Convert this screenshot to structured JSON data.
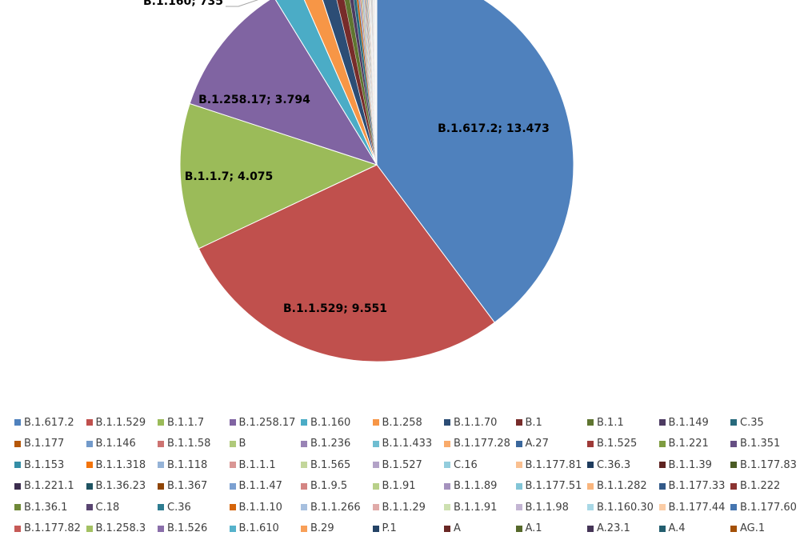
{
  "chart_data": {
    "type": "pie",
    "title": "",
    "slices": [
      {
        "name": "B.1.617.2",
        "value": 13473,
        "label": "B.1.617.2; 13.473",
        "color": "#4f81bd"
      },
      {
        "name": "B.1.1.529",
        "value": 9551,
        "label": "B.1.1.529; 9.551",
        "color": "#c0504d"
      },
      {
        "name": "B.1.1.7",
        "value": 4075,
        "label": "B.1.1.7; 4.075",
        "color": "#9bbb59"
      },
      {
        "name": "B.1.258.17",
        "value": 3794,
        "label": "B.1.258.17; 3.794",
        "color": "#8064a2"
      },
      {
        "name": "B.1.160",
        "value": 735,
        "label": "B.1.160; 735",
        "color": "#4bacc6"
      },
      {
        "name": "B.1.258",
        "value": 520,
        "label": "",
        "color": "#f79646"
      },
      {
        "name": "B.1.1.70",
        "value": 430,
        "label": "",
        "color": "#2c4d75"
      },
      {
        "name": "B.1",
        "value": 240,
        "label": "",
        "color": "#772c2a"
      },
      {
        "name": "B.1.1",
        "value": 170,
        "label": "",
        "color": "#5f7530"
      },
      {
        "name": "B.1.149",
        "value": 120,
        "label": "",
        "color": "#4d3b62"
      },
      {
        "name": "C.35",
        "value": 100,
        "label": "",
        "color": "#276a7c"
      },
      {
        "name": "B.1.177",
        "value": 60,
        "label": "",
        "color": "#b65708"
      },
      {
        "name": "B.1.146",
        "value": 45,
        "label": "",
        "color": "#729aca"
      },
      {
        "name": "B.1.1.58",
        "value": 40,
        "label": "",
        "color": "#cd7371"
      },
      {
        "name": "B",
        "value": 35,
        "label": "",
        "color": "#afc97a"
      },
      {
        "name": "B.1.236",
        "value": 30,
        "label": "",
        "color": "#9983b5"
      },
      {
        "name": "B.1.1.433",
        "value": 28,
        "label": "",
        "color": "#6fbdd1"
      },
      {
        "name": "B.1.177.28",
        "value": 26,
        "label": "",
        "color": "#f9ab6b"
      },
      {
        "name": "A.27",
        "value": 24,
        "label": "",
        "color": "#3a679c"
      },
      {
        "name": "B.1.525",
        "value": 22,
        "label": "",
        "color": "#9e3a38"
      },
      {
        "name": "B.1.221",
        "value": 20,
        "label": "",
        "color": "#7e9c40"
      },
      {
        "name": "B.1.351",
        "value": 19,
        "label": "",
        "color": "#664f83"
      },
      {
        "name": "B.1.153",
        "value": 18,
        "label": "",
        "color": "#358ea6"
      },
      {
        "name": "B.1.1.318",
        "value": 17,
        "label": "",
        "color": "#f3740b"
      },
      {
        "name": "B.1.118",
        "value": 16,
        "label": "",
        "color": "#95b3d7"
      },
      {
        "name": "B.1.1.1",
        "value": 15,
        "label": "",
        "color": "#d99694"
      },
      {
        "name": "B.1.565",
        "value": 14,
        "label": "",
        "color": "#c3d69b"
      },
      {
        "name": "B.1.527",
        "value": 13,
        "label": "",
        "color": "#b3a2c7"
      },
      {
        "name": "C.16",
        "value": 12,
        "label": "",
        "color": "#93cddd"
      },
      {
        "name": "B.1.177.81",
        "value": 12,
        "label": "",
        "color": "#fac090"
      },
      {
        "name": "C.36.3",
        "value": 11,
        "label": "",
        "color": "#1f3c5e"
      },
      {
        "name": "B.1.1.39",
        "value": 11,
        "label": "",
        "color": "#5e2321"
      },
      {
        "name": "B.1.177.83",
        "value": 10,
        "label": "",
        "color": "#4b5c25"
      },
      {
        "name": "B.1.221.1",
        "value": 10,
        "label": "",
        "color": "#3c2e4e"
      },
      {
        "name": "B.1.36.23",
        "value": 9,
        "label": "",
        "color": "#1f5462"
      },
      {
        "name": "B.1.367",
        "value": 9,
        "label": "",
        "color": "#8f4506"
      },
      {
        "name": "B.1.1.47",
        "value": 8,
        "label": "",
        "color": "#7ba0d1"
      },
      {
        "name": "B.1.9.5",
        "value": 8,
        "label": "",
        "color": "#d48583"
      },
      {
        "name": "B.1.91",
        "value": 8,
        "label": "",
        "color": "#b8d089"
      },
      {
        "name": "B.1.1.89",
        "value": 7,
        "label": "",
        "color": "#a592be"
      },
      {
        "name": "B.1.177.51",
        "value": 7,
        "label": "",
        "color": "#82c5d7"
      },
      {
        "name": "B.1.1.282",
        "value": 7,
        "label": "",
        "color": "#f9b57d"
      },
      {
        "name": "B.1.177.33",
        "value": 6,
        "label": "",
        "color": "#335a89"
      },
      {
        "name": "B.1.222",
        "value": 6,
        "label": "",
        "color": "#8b3331"
      },
      {
        "name": "B.1.36.1",
        "value": 6,
        "label": "",
        "color": "#6f8838"
      },
      {
        "name": "C.18",
        "value": 5,
        "label": "",
        "color": "#594571"
      },
      {
        "name": "C.36",
        "value": 5,
        "label": "",
        "color": "#2e7c90"
      },
      {
        "name": "B.1.1.10",
        "value": 5,
        "label": "",
        "color": "#d5650a"
      },
      {
        "name": "B.1.1.266",
        "value": 5,
        "label": "",
        "color": "#a7c0df"
      },
      {
        "name": "B.1.1.29",
        "value": 4,
        "label": "",
        "color": "#e0aaa8"
      },
      {
        "name": "B.1.1.91",
        "value": 4,
        "label": "",
        "color": "#cde0b0"
      },
      {
        "name": "B.1.1.98",
        "value": 4,
        "label": "",
        "color": "#c3b5d3"
      },
      {
        "name": "B.1.160.30",
        "value": 4,
        "label": "",
        "color": "#a8d8e6"
      },
      {
        "name": "B.1.177.44",
        "value": 3,
        "label": "",
        "color": "#fbcca5"
      },
      {
        "name": "B.1.177.60",
        "value": 3,
        "label": "",
        "color": "#4575b0"
      },
      {
        "name": "B.1.177.82",
        "value": 3,
        "label": "",
        "color": "#c65a57"
      },
      {
        "name": "B.1.258.3",
        "value": 3,
        "label": "",
        "color": "#a3c163"
      },
      {
        "name": "B.1.526",
        "value": 2,
        "label": "",
        "color": "#8a6faa"
      },
      {
        "name": "B.1.610",
        "value": 2,
        "label": "",
        "color": "#56b2cb"
      },
      {
        "name": "B.29",
        "value": 2,
        "label": "",
        "color": "#f89f58"
      },
      {
        "name": "P.1",
        "value": 2,
        "label": "",
        "color": "#244366"
      },
      {
        "name": "A",
        "value": 2,
        "label": "",
        "color": "#6a2725"
      },
      {
        "name": "A.1",
        "value": 1,
        "label": "",
        "color": "#56692b"
      },
      {
        "name": "A.23.1",
        "value": 1,
        "label": "",
        "color": "#453557"
      },
      {
        "name": "A.4",
        "value": 1,
        "label": "",
        "color": "#235e6f"
      },
      {
        "name": "AG.1",
        "value": 1,
        "label": "",
        "color": "#a35007"
      }
    ],
    "legend_position": "bottom"
  }
}
